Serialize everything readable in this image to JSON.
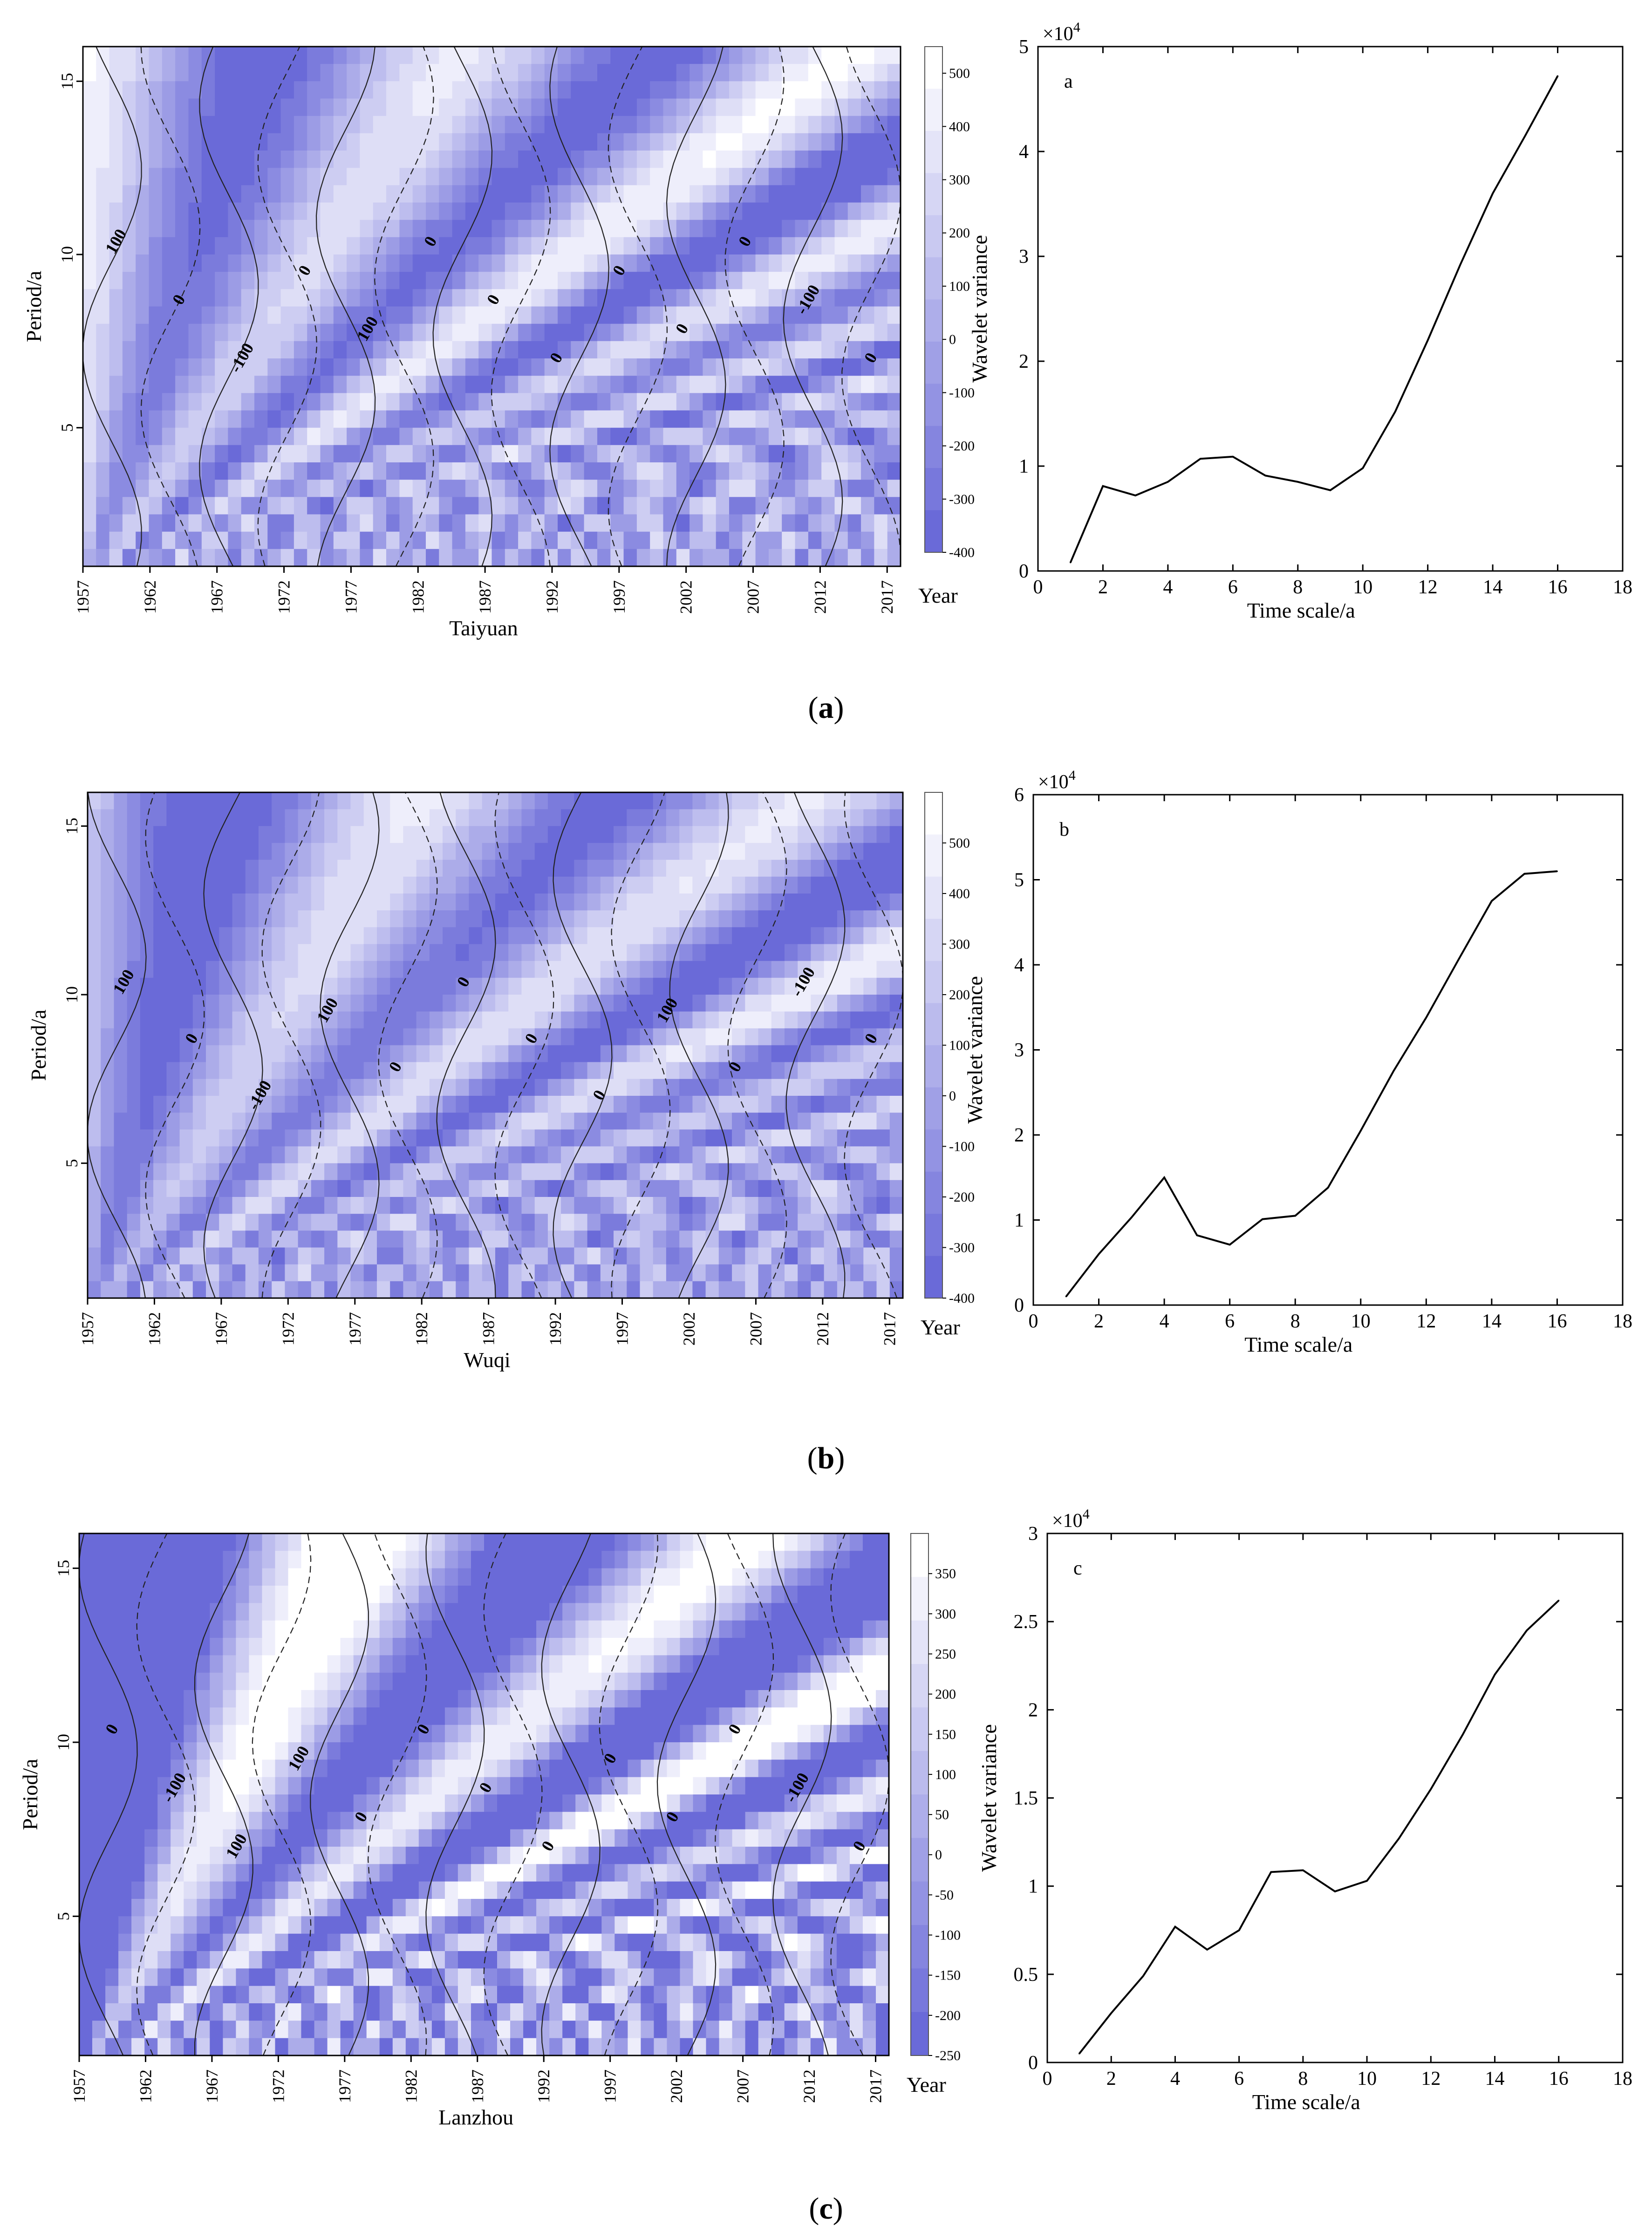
{
  "panels": [
    {
      "panel_label_prefix": "(",
      "panel_letter": "a",
      "panel_label_suffix": ")",
      "chart_data": [
        {
          "type": "heatmap",
          "title": "",
          "station": "Taiyuan",
          "xlabel": "Taiyuan",
          "x_unit": "Year",
          "ylabel": "Period/a",
          "xlim": [
            1957,
            2018
          ],
          "ylim": [
            1,
            16
          ],
          "xticks": [
            1957,
            1962,
            1967,
            1972,
            1977,
            1982,
            1987,
            1992,
            1997,
            2002,
            2007,
            2012,
            2017
          ],
          "yticks": [
            5,
            10,
            15
          ],
          "colorbar": {
            "ticks": [
              500,
              400,
              300,
              200,
              100,
              0,
              -100,
              -200,
              -300,
              -400
            ],
            "min": -400,
            "max": 550,
            "low_color": "#6a6ad8",
            "high_color": "#ffffff"
          },
          "contour_labels": [
            "100",
            "0",
            "-100",
            "0",
            "100",
            "0",
            "0",
            "0",
            "0",
            "0",
            "0",
            "-100",
            "0"
          ]
        },
        {
          "type": "line",
          "title": "",
          "inset_letter": "a",
          "xlabel": "Time scale/a",
          "ylabel": "Wavelet variance",
          "scale_label": "×10",
          "scale_exp": "4",
          "xlim": [
            0,
            18
          ],
          "ylim": [
            0,
            5
          ],
          "xticks": [
            0,
            2,
            4,
            6,
            8,
            10,
            12,
            14,
            16,
            18
          ],
          "yticks": [
            0,
            1,
            2,
            3,
            4,
            5
          ],
          "x": [
            1,
            2,
            3,
            4,
            5,
            6,
            7,
            8,
            9,
            10,
            11,
            12,
            13,
            14,
            15,
            16
          ],
          "values": [
            0.08,
            0.81,
            0.72,
            0.85,
            1.07,
            1.09,
            0.91,
            0.85,
            0.77,
            0.98,
            1.52,
            2.2,
            2.92,
            3.6,
            4.15,
            4.72
          ]
        }
      ]
    },
    {
      "panel_label_prefix": "(",
      "panel_letter": "b",
      "panel_label_suffix": ")",
      "chart_data": [
        {
          "type": "heatmap",
          "title": "",
          "station": "Wuqi",
          "xlabel": "Wuqi",
          "x_unit": "Year",
          "ylabel": "Period/a",
          "xlim": [
            1957,
            2018
          ],
          "ylim": [
            1,
            16
          ],
          "xticks": [
            1957,
            1962,
            1967,
            1972,
            1977,
            1982,
            1987,
            1992,
            1997,
            2002,
            2007,
            2012,
            2017
          ],
          "yticks": [
            5,
            10,
            15
          ],
          "colorbar": {
            "ticks": [
              500,
              400,
              300,
              200,
              100,
              0,
              -100,
              -200,
              -300,
              -400
            ],
            "min": -400,
            "max": 600,
            "low_color": "#6a6ad8",
            "high_color": "#ffffff"
          },
          "contour_labels": [
            "100",
            "0",
            "-100",
            "100",
            "0",
            "0",
            "0",
            "0",
            "100",
            "0",
            "-100",
            "0"
          ]
        },
        {
          "type": "line",
          "title": "",
          "inset_letter": "b",
          "xlabel": "Time scale/a",
          "ylabel": "Wavelet variance",
          "scale_label": "×10",
          "scale_exp": "4",
          "xlim": [
            0,
            18
          ],
          "ylim": [
            0,
            6
          ],
          "xticks": [
            0,
            2,
            4,
            6,
            8,
            10,
            12,
            14,
            16,
            18
          ],
          "yticks": [
            0,
            1,
            2,
            3,
            4,
            5,
            6
          ],
          "x": [
            1,
            2,
            3,
            4,
            5,
            6,
            7,
            8,
            9,
            10,
            11,
            12,
            13,
            14,
            15,
            16
          ],
          "values": [
            0.1,
            0.6,
            1.03,
            1.5,
            0.82,
            0.71,
            1.01,
            1.05,
            1.38,
            2.05,
            2.75,
            3.38,
            4.07,
            4.75,
            5.07,
            5.1
          ]
        }
      ]
    },
    {
      "panel_label_prefix": "(",
      "panel_letter": "c",
      "panel_label_suffix": ")",
      "chart_data": [
        {
          "type": "heatmap",
          "title": "",
          "station": "Lanzhou",
          "xlabel": "Lanzhou",
          "x_unit": "Year",
          "ylabel": "Period/a",
          "xlim": [
            1957,
            2018
          ],
          "ylim": [
            1,
            16
          ],
          "xticks": [
            1957,
            1962,
            1967,
            1972,
            1977,
            1982,
            1987,
            1992,
            1997,
            2002,
            2007,
            2012,
            2017
          ],
          "yticks": [
            5,
            10,
            15
          ],
          "colorbar": {
            "ticks": [
              350,
              300,
              250,
              200,
              150,
              100,
              50,
              0,
              -50,
              -100,
              -150,
              -200,
              -250
            ],
            "min": -250,
            "max": 400,
            "low_color": "#6a6ad8",
            "high_color": "#ffffff"
          },
          "contour_labels": [
            "0",
            "-100",
            "100",
            "100",
            "0",
            "0",
            "0",
            "0",
            "0",
            "0",
            "0",
            "-100",
            "0"
          ]
        },
        {
          "type": "line",
          "title": "",
          "inset_letter": "c",
          "xlabel": "Time scale/a",
          "ylabel": "Wavelet variance",
          "scale_label": "×10",
          "scale_exp": "4",
          "xlim": [
            0,
            18
          ],
          "ylim": [
            0,
            3
          ],
          "xticks": [
            0,
            2,
            4,
            6,
            8,
            10,
            12,
            14,
            16,
            18
          ],
          "yticks": [
            0,
            0.5,
            1,
            1.5,
            2,
            2.5,
            3
          ],
          "x": [
            1,
            2,
            3,
            4,
            5,
            6,
            7,
            8,
            9,
            10,
            11,
            12,
            13,
            14,
            15,
            16
          ],
          "values": [
            0.05,
            0.28,
            0.49,
            0.77,
            0.64,
            0.75,
            1.08,
            1.09,
            0.97,
            1.03,
            1.27,
            1.55,
            1.86,
            2.2,
            2.45,
            2.62
          ]
        }
      ]
    }
  ]
}
